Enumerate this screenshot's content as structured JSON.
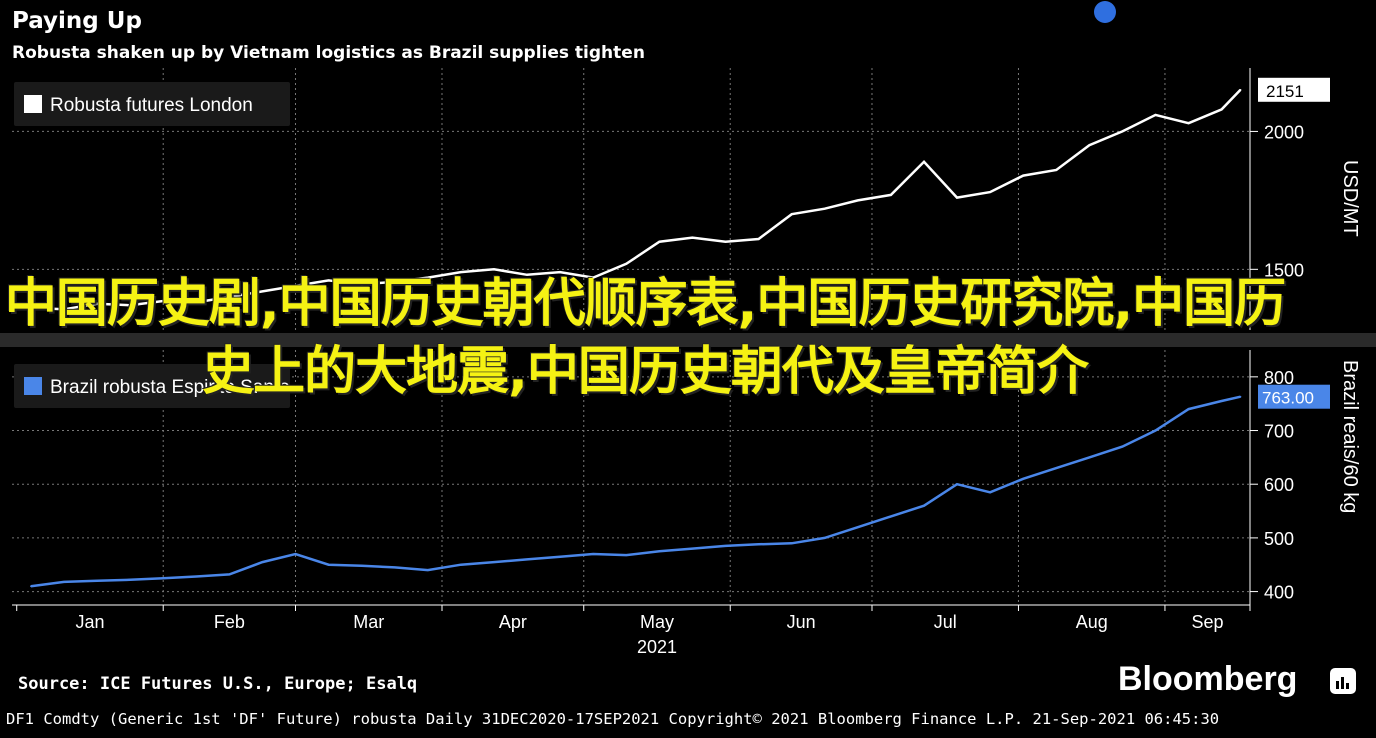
{
  "header": {
    "title": "Paying Up",
    "subtitle": "Robusta shaken up by Vietnam logistics as Brazil supplies tighten"
  },
  "overlay_text": "中国历史剧,中国历史朝代顺序表,中国历史研究院,中国历史上的大地震,中国历史朝代及皇帝简介",
  "source": "Source: ICE Futures U.S., Europe; Esalq",
  "brand": "Bloomberg",
  "footer": "DF1 Comdty (Generic 1st 'DF' Future) robusta  Daily 31DEC2020-17SEP2021  Copyright© 2021 Bloomberg Finance L.P.  21-Sep-2021 06:45:30",
  "colors": {
    "background": "#000000",
    "top_series": "#ffffff",
    "bottom_series": "#4a86e8",
    "overlay": "#f5f213"
  },
  "chart_data": [
    {
      "type": "line",
      "legend": "Robusta futures London",
      "ylabel": "USD/MT",
      "ylim": [
        1280,
        2230
      ],
      "yticks": [
        1500,
        2000
      ],
      "last_value_label": "2151",
      "grid": true,
      "legend_position": "top-left",
      "x": [
        "2021-01-04",
        "2021-01-11",
        "2021-01-18",
        "2021-01-25",
        "2021-02-01",
        "2021-02-08",
        "2021-02-15",
        "2021-02-22",
        "2021-03-01",
        "2021-03-08",
        "2021-03-15",
        "2021-03-22",
        "2021-03-29",
        "2021-04-05",
        "2021-04-12",
        "2021-04-19",
        "2021-04-26",
        "2021-05-03",
        "2021-05-10",
        "2021-05-17",
        "2021-05-24",
        "2021-05-31",
        "2021-06-07",
        "2021-06-14",
        "2021-06-21",
        "2021-06-28",
        "2021-07-05",
        "2021-07-12",
        "2021-07-19",
        "2021-07-26",
        "2021-08-02",
        "2021-08-09",
        "2021-08-16",
        "2021-08-23",
        "2021-08-30",
        "2021-09-06",
        "2021-09-13",
        "2021-09-17"
      ],
      "values": [
        1360,
        1355,
        1375,
        1370,
        1385,
        1380,
        1400,
        1420,
        1440,
        1460,
        1445,
        1455,
        1470,
        1490,
        1500,
        1480,
        1490,
        1470,
        1520,
        1600,
        1615,
        1600,
        1610,
        1700,
        1720,
        1750,
        1770,
        1890,
        1760,
        1780,
        1840,
        1860,
        1950,
        2000,
        2060,
        2030,
        2080,
        2151
      ]
    },
    {
      "type": "line",
      "legend": "Brazil robusta Espirito Santo",
      "ylabel": "Brazil reais/60 kg",
      "ylim": [
        375,
        850
      ],
      "yticks": [
        400,
        500,
        600,
        700,
        800
      ],
      "last_value_label": "763.00",
      "grid": true,
      "legend_position": "top-left",
      "x_tick_labels": [
        "Jan",
        "Feb",
        "Mar",
        "Apr",
        "May",
        "Jun",
        "Jul",
        "Aug",
        "Sep"
      ],
      "x_year_label": "2021",
      "x": [
        "2021-01-04",
        "2021-01-11",
        "2021-01-18",
        "2021-01-25",
        "2021-02-01",
        "2021-02-08",
        "2021-02-15",
        "2021-02-22",
        "2021-03-01",
        "2021-03-08",
        "2021-03-15",
        "2021-03-22",
        "2021-03-29",
        "2021-04-05",
        "2021-04-12",
        "2021-04-19",
        "2021-04-26",
        "2021-05-03",
        "2021-05-10",
        "2021-05-17",
        "2021-05-24",
        "2021-05-31",
        "2021-06-07",
        "2021-06-14",
        "2021-06-21",
        "2021-06-28",
        "2021-07-05",
        "2021-07-12",
        "2021-07-19",
        "2021-07-26",
        "2021-08-02",
        "2021-08-09",
        "2021-08-16",
        "2021-08-23",
        "2021-08-30",
        "2021-09-06",
        "2021-09-13",
        "2021-09-17"
      ],
      "values": [
        410,
        418,
        420,
        422,
        425,
        428,
        432,
        455,
        470,
        450,
        448,
        445,
        440,
        450,
        455,
        460,
        465,
        470,
        468,
        475,
        480,
        485,
        488,
        490,
        500,
        520,
        540,
        560,
        600,
        585,
        610,
        630,
        650,
        670,
        700,
        740,
        755,
        763
      ]
    }
  ]
}
